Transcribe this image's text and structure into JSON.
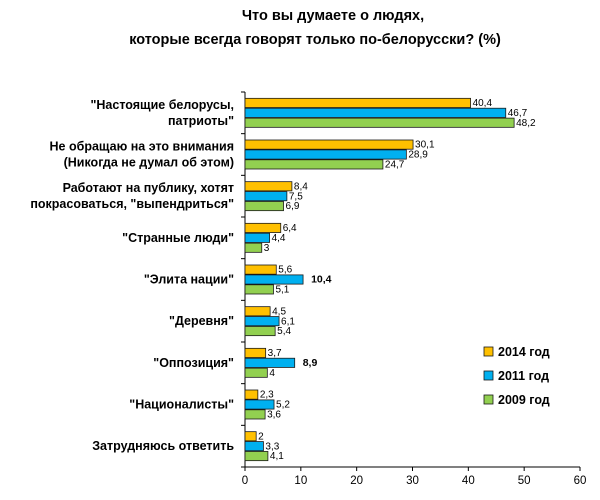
{
  "chart_data": {
    "type": "bar",
    "orientation": "horizontal",
    "title": [
      "Что вы думаете о  людях,",
      "которые всегда говорят только по-белорусски? (%)"
    ],
    "categories": [
      [
        "\"Настоящие белорусы,",
        "патриоты\""
      ],
      [
        "Не обращаю на это внимания",
        "(Никогда не думал об этом)"
      ],
      [
        "Работают на публику, хотят",
        "покрасоваться, \"выпендриться\""
      ],
      [
        "\"Странные люди\""
      ],
      [
        "\"Элита нации\""
      ],
      [
        "\"Деревня\""
      ],
      [
        "\"Оппозиция\""
      ],
      [
        "\"Националисты\""
      ],
      [
        "Затрудняюсь ответить"
      ]
    ],
    "series": [
      {
        "name": "2014 год",
        "color": "#FFC000",
        "values": [
          40.4,
          30.1,
          8.4,
          6.4,
          5.6,
          4.5,
          3.7,
          2.3,
          2
        ],
        "labels": [
          "40,4",
          "30,1",
          "8,4",
          "6,4",
          "5,6",
          "4,5",
          "3,7",
          "2,3",
          "2"
        ]
      },
      {
        "name": "2011 год",
        "color": "#00B0F0",
        "values": [
          46.7,
          28.9,
          7.5,
          4.4,
          10.4,
          6.1,
          8.9,
          5.2,
          3.3
        ],
        "labels": [
          "46,7",
          "28,9",
          "7,5",
          "4,4",
          "10,4",
          "6,1",
          "8,9",
          "5,2",
          "3,3"
        ]
      },
      {
        "name": "2009 год",
        "color": "#92D050",
        "values": [
          48.2,
          24.7,
          6.9,
          3,
          5.1,
          5.4,
          4,
          3.6,
          4.1
        ],
        "labels": [
          "48,2",
          "24,7",
          "6,9",
          "3",
          "5,1",
          "5,4",
          "4",
          "3,6",
          "4,1"
        ]
      }
    ],
    "highlighted_labels": [
      {
        "category_index": 4,
        "series_index": 1,
        "color": "#E02020"
      },
      {
        "category_index": 6,
        "series_index": 1,
        "color": "#E02020"
      }
    ],
    "xlim": [
      0,
      60
    ],
    "xticks": [
      0,
      10,
      20,
      30,
      40,
      50,
      60
    ],
    "grid": false,
    "legend_position": "bottom-right"
  }
}
